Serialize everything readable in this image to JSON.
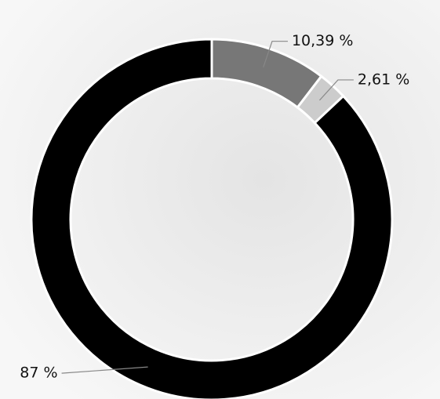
{
  "chart_data": {
    "type": "donut",
    "values": [
      10.39,
      2.61,
      87
    ],
    "value_labels": [
      "10,39 %",
      "2,61 %",
      "87 %"
    ],
    "colors": [
      "#777777",
      "#cccccc",
      "#000000"
    ]
  }
}
